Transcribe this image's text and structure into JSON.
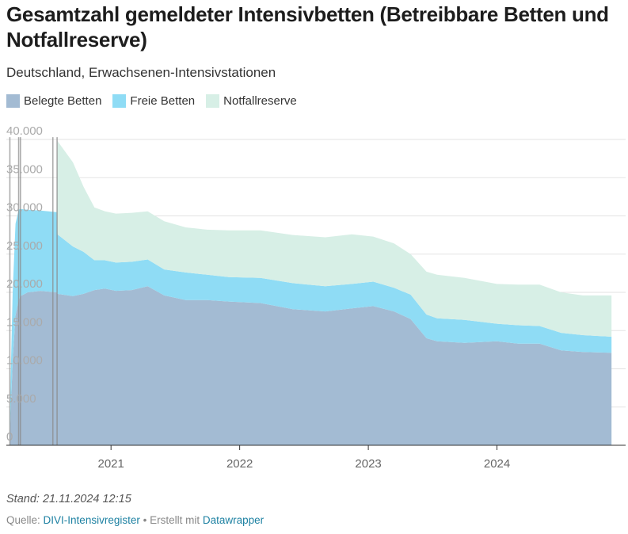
{
  "header": {
    "title": "Gesamtzahl gemeldeter Intensivbetten (Betreibbare Betten und Notfallreserve)",
    "subtitle": "Deutschland, Erwachsenen-Intensivstationen"
  },
  "legend": [
    {
      "label": "Belegte Betten",
      "color": "#a3bbd3"
    },
    {
      "label": "Freie Betten",
      "color": "#8fdcf5"
    },
    {
      "label": "Notfallreserve",
      "color": "#d7efe6"
    }
  ],
  "footer": {
    "note": "Stand: 21.11.2024 12:15",
    "source_prefix": "Quelle:",
    "source_name": "DIVI-Intensivregister",
    "separator": "•",
    "credit_prefix": "Erstellt mit",
    "credit_name": "Datawrapper"
  },
  "chart_data": {
    "type": "area",
    "stacked": true,
    "x_unit": "date",
    "ylim": [
      0,
      40000
    ],
    "y_ticks": [
      0,
      5000,
      10000,
      15000,
      20000,
      25000,
      30000,
      35000,
      40000
    ],
    "y_tick_labels": [
      "0",
      "5.000",
      "10.000",
      "15.000",
      "20.000",
      "25.000",
      "30.000",
      "35.000",
      "40.000"
    ],
    "x_ticks": [
      "2021-01-01",
      "2022-01-01",
      "2023-01-01",
      "2024-01-01"
    ],
    "x_tick_labels": [
      "2021",
      "2022",
      "2023",
      "2024"
    ],
    "x_range": [
      "2020-03-10",
      "2024-12-31"
    ],
    "grid": true,
    "legend_position": "top-left",
    "annotation_lines": [
      "2020-03-20",
      "2020-04-14",
      "2020-04-19",
      "2020-07-20",
      "2020-08-01"
    ],
    "dates": [
      "2020-03-20",
      "2020-03-28",
      "2020-04-05",
      "2020-04-14",
      "2020-04-19",
      "2020-05-10",
      "2020-06-15",
      "2020-07-31",
      "2020-08-02",
      "2020-09-15",
      "2020-10-15",
      "2020-11-15",
      "2020-12-15",
      "2021-01-15",
      "2021-03-01",
      "2021-04-15",
      "2021-06-01",
      "2021-08-01",
      "2021-10-01",
      "2021-12-01",
      "2022-03-01",
      "2022-06-01",
      "2022-09-01",
      "2022-11-15",
      "2023-01-15",
      "2023-03-15",
      "2023-05-01",
      "2023-06-15",
      "2023-07-15",
      "2023-10-01",
      "2024-01-01",
      "2024-03-01",
      "2024-05-01",
      "2024-07-01",
      "2024-09-01",
      "2024-11-21"
    ],
    "series": [
      {
        "name": "Belegte Betten",
        "color": "#a3bbd3",
        "values": [
          1500,
          11000,
          17000,
          19000,
          19500,
          20000,
          20200,
          20000,
          19800,
          19500,
          19800,
          20300,
          20500,
          20200,
          20300,
          20800,
          19600,
          19000,
          19000,
          18800,
          18600,
          17800,
          17500,
          17900,
          18200,
          17500,
          16500,
          14000,
          13600,
          13400,
          13600,
          13300,
          13300,
          12400,
          12200,
          12100
        ]
      },
      {
        "name": "Freie Betten",
        "color": "#8fdcf5",
        "values": [
          3000,
          9000,
          12000,
          11800,
          11400,
          10800,
          10500,
          10500,
          7800,
          6500,
          5500,
          3900,
          3700,
          3700,
          3700,
          3500,
          3400,
          3600,
          3300,
          3200,
          3300,
          3400,
          3300,
          3200,
          3200,
          3100,
          3200,
          3100,
          3000,
          3000,
          2300,
          2400,
          2300,
          2300,
          2200,
          2100
        ]
      },
      {
        "name": "Notfallreserve",
        "color": "#d7efe6",
        "values": [
          0,
          0,
          0,
          0,
          0,
          0,
          0,
          0,
          12200,
          11000,
          8500,
          6900,
          6400,
          6400,
          6400,
          6300,
          6300,
          5900,
          5900,
          6100,
          6200,
          6300,
          6400,
          6500,
          5900,
          5800,
          5300,
          5600,
          5700,
          5500,
          5200,
          5300,
          5400,
          5300,
          5200,
          5400
        ]
      }
    ]
  }
}
